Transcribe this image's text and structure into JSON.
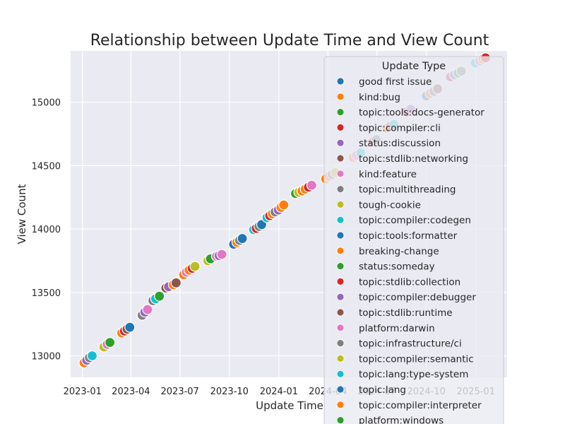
{
  "chart_data": {
    "type": "scatter",
    "title": "Relationship between Update Time and View Count",
    "xlabel": "Update Time",
    "ylabel": "View Count",
    "x_axis_type": "date",
    "xlim": [
      "2022-12-10",
      "2025-02-28"
    ],
    "ylim": [
      12830,
      15405
    ],
    "x_ticks": [
      "2023-01-01",
      "2023-04-01",
      "2023-07-01",
      "2023-10-01",
      "2024-01-01",
      "2024-04-01",
      "2024-07-01",
      "2024-10-01",
      "2025-01-01"
    ],
    "x_tick_labels": [
      "2023-01",
      "2023-04",
      "2023-07",
      "2023-10",
      "2024-01",
      "2024-04",
      "2024-07",
      "2024-10",
      "2025-01"
    ],
    "y_ticks": [
      13000,
      13500,
      14000,
      14500,
      15000
    ],
    "y_tick_labels": [
      "13000",
      "13500",
      "14000",
      "14500",
      "15000"
    ],
    "grid": true,
    "style": "seaborn darkgrid",
    "legend_title": "Update Type",
    "legend_position": "top-right, overlapping plot and extending below the figure",
    "legend_entries": [
      "good first issue",
      "kind:bug",
      "topic:tools:docs-generator",
      "topic:compiler:cli",
      "status:discussion",
      "topic:stdlib:networking",
      "kind:feature",
      "topic:multithreading",
      "tough-cookie",
      "topic:compiler:codegen",
      "topic:tools:formatter",
      "breaking-change",
      "status:someday",
      "topic:stdlib:collection",
      "topic:compiler:debugger",
      "topic:stdlib:runtime",
      "platform:darwin",
      "topic:infrastructure/ci",
      "topic:compiler:semantic",
      "topic:lang:type-system",
      "topic:lang",
      "topic:compiler:interpreter",
      "platform:windows"
    ],
    "palette": [
      "#1f77b4",
      "#ff7f0e",
      "#2ca02c",
      "#d62728",
      "#9467bd",
      "#8c564b",
      "#e377c2",
      "#7f7f7f",
      "#bcbd22",
      "#17becf"
    ],
    "points": [
      {
        "x": "2023-01-04",
        "y": 12945,
        "c": 1
      },
      {
        "x": "2023-01-09",
        "y": 12965,
        "c": 4
      },
      {
        "x": "2023-01-14",
        "y": 12985,
        "c": 7
      },
      {
        "x": "2023-01-19",
        "y": 13000,
        "c": 9
      },
      {
        "x": "2023-02-10",
        "y": 13070,
        "c": 8
      },
      {
        "x": "2023-02-16",
        "y": 13090,
        "c": 6
      },
      {
        "x": "2023-02-21",
        "y": 13105,
        "c": 2
      },
      {
        "x": "2023-03-15",
        "y": 13180,
        "c": 1
      },
      {
        "x": "2023-03-20",
        "y": 13195,
        "c": 3
      },
      {
        "x": "2023-03-25",
        "y": 13210,
        "c": 5
      },
      {
        "x": "2023-03-30",
        "y": 13225,
        "c": 0
      },
      {
        "x": "2023-04-22",
        "y": 13320,
        "c": 7
      },
      {
        "x": "2023-04-27",
        "y": 13345,
        "c": 4
      },
      {
        "x": "2023-05-02",
        "y": 13365,
        "c": 6
      },
      {
        "x": "2023-05-12",
        "y": 13435,
        "c": 7
      },
      {
        "x": "2023-05-17",
        "y": 13450,
        "c": 9
      },
      {
        "x": "2023-05-24",
        "y": 13470,
        "c": 2
      },
      {
        "x": "2023-06-05",
        "y": 13535,
        "c": 5
      },
      {
        "x": "2023-06-10",
        "y": 13545,
        "c": 4
      },
      {
        "x": "2023-06-19",
        "y": 13560,
        "c": 1
      },
      {
        "x": "2023-06-24",
        "y": 13575,
        "c": 5
      },
      {
        "x": "2023-07-08",
        "y": 13640,
        "c": 1
      },
      {
        "x": "2023-07-13",
        "y": 13660,
        "c": 6
      },
      {
        "x": "2023-07-18",
        "y": 13675,
        "c": 1
      },
      {
        "x": "2023-07-24",
        "y": 13690,
        "c": 3
      },
      {
        "x": "2023-07-29",
        "y": 13705,
        "c": 8
      },
      {
        "x": "2023-08-22",
        "y": 13750,
        "c": 8
      },
      {
        "x": "2023-08-27",
        "y": 13765,
        "c": 2
      },
      {
        "x": "2023-09-07",
        "y": 13785,
        "c": 6
      },
      {
        "x": "2023-09-12",
        "y": 13790,
        "c": 4
      },
      {
        "x": "2023-09-17",
        "y": 13800,
        "c": 6
      },
      {
        "x": "2023-10-09",
        "y": 13880,
        "c": 0
      },
      {
        "x": "2023-10-15",
        "y": 13895,
        "c": 1
      },
      {
        "x": "2023-10-20",
        "y": 13910,
        "c": 7
      },
      {
        "x": "2023-10-25",
        "y": 13925,
        "c": 0
      },
      {
        "x": "2023-11-15",
        "y": 13995,
        "c": 9
      },
      {
        "x": "2023-11-20",
        "y": 14005,
        "c": 3
      },
      {
        "x": "2023-11-25",
        "y": 14020,
        "c": 7
      },
      {
        "x": "2023-11-30",
        "y": 14035,
        "c": 0
      },
      {
        "x": "2023-12-10",
        "y": 14090,
        "c": 9
      },
      {
        "x": "2023-12-15",
        "y": 14105,
        "c": 3
      },
      {
        "x": "2023-12-20",
        "y": 14120,
        "c": 1
      },
      {
        "x": "2023-12-25",
        "y": 14135,
        "c": 7
      },
      {
        "x": "2023-12-31",
        "y": 14150,
        "c": 4
      },
      {
        "x": "2024-01-05",
        "y": 14170,
        "c": 1
      },
      {
        "x": "2024-01-10",
        "y": 14190,
        "c": 1
      },
      {
        "x": "2024-02-01",
        "y": 14280,
        "c": 2
      },
      {
        "x": "2024-02-07",
        "y": 14290,
        "c": 8
      },
      {
        "x": "2024-02-13",
        "y": 14300,
        "c": 1
      },
      {
        "x": "2024-02-19",
        "y": 14315,
        "c": 1
      },
      {
        "x": "2024-02-25",
        "y": 14330,
        "c": 3
      },
      {
        "x": "2024-03-02",
        "y": 14345,
        "c": 6
      },
      {
        "x": "2024-03-28",
        "y": 14395,
        "c": 1
      },
      {
        "x": "2024-04-03",
        "y": 14415,
        "c": 1
      },
      {
        "x": "2024-04-09",
        "y": 14430,
        "c": 4
      },
      {
        "x": "2024-04-15",
        "y": 14445,
        "c": 8
      },
      {
        "x": "2024-05-18",
        "y": 14565,
        "c": 1
      },
      {
        "x": "2024-05-24",
        "y": 14580,
        "c": 6
      },
      {
        "x": "2024-06-01",
        "y": 14600,
        "c": 9
      },
      {
        "x": "2024-06-24",
        "y": 14690,
        "c": 3
      },
      {
        "x": "2024-06-30",
        "y": 14705,
        "c": 7
      },
      {
        "x": "2024-07-20",
        "y": 14795,
        "c": 1
      },
      {
        "x": "2024-07-26",
        "y": 14810,
        "c": 3
      },
      {
        "x": "2024-08-02",
        "y": 14825,
        "c": 9
      },
      {
        "x": "2024-08-25",
        "y": 14925,
        "c": 3
      },
      {
        "x": "2024-09-02",
        "y": 14945,
        "c": 4
      },
      {
        "x": "2024-10-01",
        "y": 15050,
        "c": 0
      },
      {
        "x": "2024-10-08",
        "y": 15070,
        "c": 1
      },
      {
        "x": "2024-10-15",
        "y": 15085,
        "c": 7
      },
      {
        "x": "2024-10-22",
        "y": 15105,
        "c": 5
      },
      {
        "x": "2024-11-15",
        "y": 15200,
        "c": 3
      },
      {
        "x": "2024-11-22",
        "y": 15215,
        "c": 4
      },
      {
        "x": "2024-11-29",
        "y": 15230,
        "c": 2
      },
      {
        "x": "2024-12-05",
        "y": 15245,
        "c": 7
      },
      {
        "x": "2024-12-31",
        "y": 15310,
        "c": 9
      },
      {
        "x": "2025-01-08",
        "y": 15325,
        "c": 6
      },
      {
        "x": "2025-01-14",
        "y": 15340,
        "c": 1
      },
      {
        "x": "2025-01-19",
        "y": 15350,
        "c": 3
      }
    ]
  }
}
